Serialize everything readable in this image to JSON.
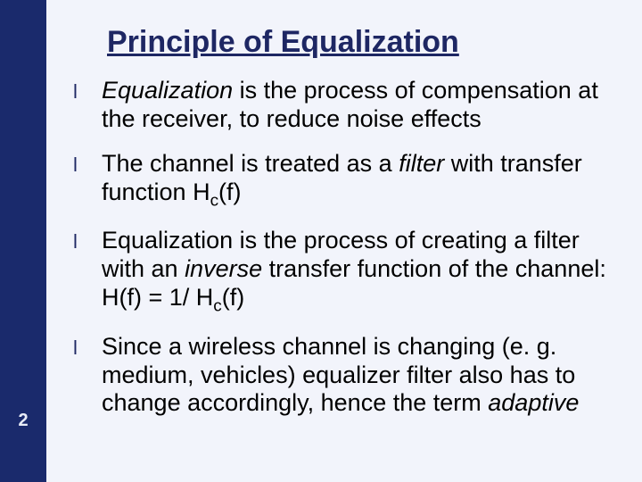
{
  "colors": {
    "left_strip": "#1a2a6c",
    "background": "#f2f4fb",
    "title": "#1e2763",
    "body_text": "#000000",
    "bullet_mark": "#1e2763",
    "page_number": "#e8ecf7"
  },
  "layout": {
    "slide_width": 720,
    "slide_height": 540,
    "left_strip_width": 52,
    "title_fontsize": 34,
    "body_fontsize": 27,
    "page_number_fontsize": 20,
    "page_number_top": 460
  },
  "page_number": "2",
  "title": "Principle of Equalization",
  "bullets": [
    {
      "segments": [
        {
          "text": "Equalization",
          "italic": true
        },
        {
          "text": " is the process of compensation at the receiver, to reduce noise effects"
        }
      ]
    },
    {
      "segments": [
        {
          "text": "The channel is treated as a "
        },
        {
          "text": "filter",
          "italic": true
        },
        {
          "text": " with transfer function H"
        },
        {
          "text": "c",
          "sub": true
        },
        {
          "text": "(f)"
        }
      ]
    },
    {
      "segments": [
        {
          "text": "Equalization is the process of creating a filter with an "
        },
        {
          "text": "inverse",
          "italic": true
        },
        {
          "text": " transfer function of the channel: H(f) = 1/ H"
        },
        {
          "text": "c",
          "sub": true
        },
        {
          "text": "(f)"
        }
      ]
    },
    {
      "segments": [
        {
          "text": "Since a wireless channel is changing (e. g. medium, vehicles) equalizer filter also has to change accordingly, hence the term "
        },
        {
          "text": "adaptive",
          "italic": true
        }
      ]
    }
  ]
}
